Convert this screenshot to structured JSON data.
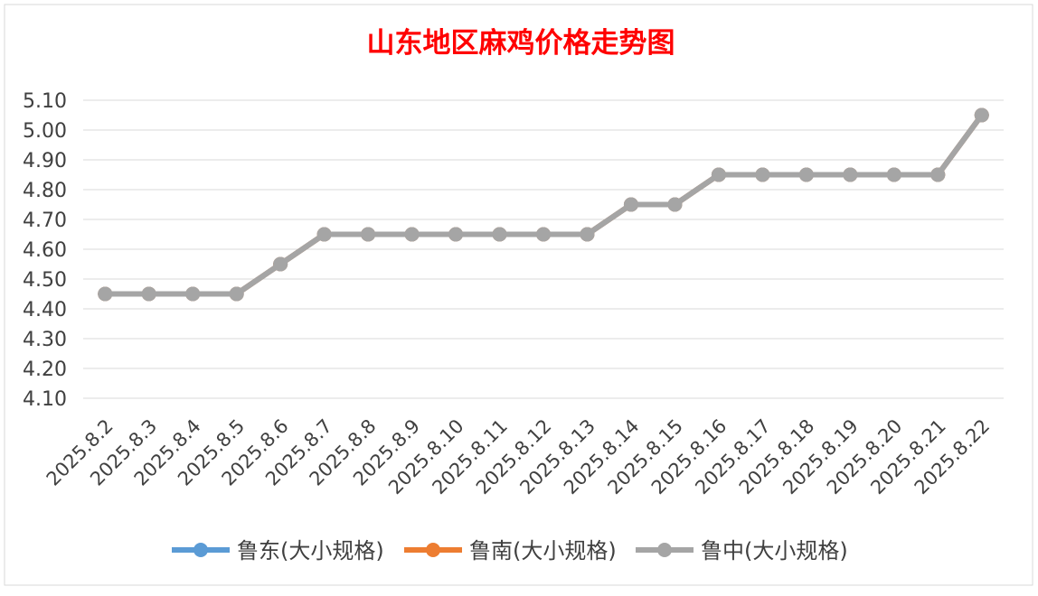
{
  "chart_data": {
    "type": "line",
    "title": "山东地区麻鸡价格走势图",
    "xlabel": "",
    "ylabel": "",
    "categories": [
      "2025.8.2",
      "2025.8.3",
      "2025.8.4",
      "2025.8.5",
      "2025.8.6",
      "2025.8.7",
      "2025.8.8",
      "2025.8.9",
      "2025.8.10",
      "2025.8.11",
      "2025.8.12",
      "2025.8.13",
      "2025.8.14",
      "2025.8.15",
      "2025.8.16",
      "2025.8.17",
      "2025.8.18",
      "2025.8.19",
      "2025.8.20",
      "2025.8.21",
      "2025.8.22"
    ],
    "yticks": [
      "4.10",
      "4.20",
      "4.30",
      "4.40",
      "4.50",
      "4.60",
      "4.70",
      "4.80",
      "4.90",
      "5.00",
      "5.10"
    ],
    "ylim": [
      4.1,
      5.1
    ],
    "grid": true,
    "legend_position": "bottom",
    "series": [
      {
        "name": "鲁东(大小规格)",
        "color": "#5b9bd5",
        "values": [
          4.45,
          4.45,
          4.45,
          4.45,
          4.55,
          4.65,
          4.65,
          4.65,
          4.65,
          4.65,
          4.65,
          4.65,
          4.75,
          4.75,
          4.85,
          4.85,
          4.85,
          4.85,
          4.85,
          4.85,
          5.05
        ]
      },
      {
        "name": "鲁南(大小规格)",
        "color": "#ed7d31",
        "values": [
          4.45,
          4.45,
          4.45,
          4.45,
          4.55,
          4.65,
          4.65,
          4.65,
          4.65,
          4.65,
          4.65,
          4.65,
          4.75,
          4.75,
          4.85,
          4.85,
          4.85,
          4.85,
          4.85,
          4.85,
          5.05
        ]
      },
      {
        "name": "鲁中(大小规格)",
        "color": "#a5a5a5",
        "values": [
          4.45,
          4.45,
          4.45,
          4.45,
          4.55,
          4.65,
          4.65,
          4.65,
          4.65,
          4.65,
          4.65,
          4.65,
          4.75,
          4.75,
          4.85,
          4.85,
          4.85,
          4.85,
          4.85,
          4.85,
          5.05
        ]
      }
    ],
    "title_color": "#ff0000"
  }
}
